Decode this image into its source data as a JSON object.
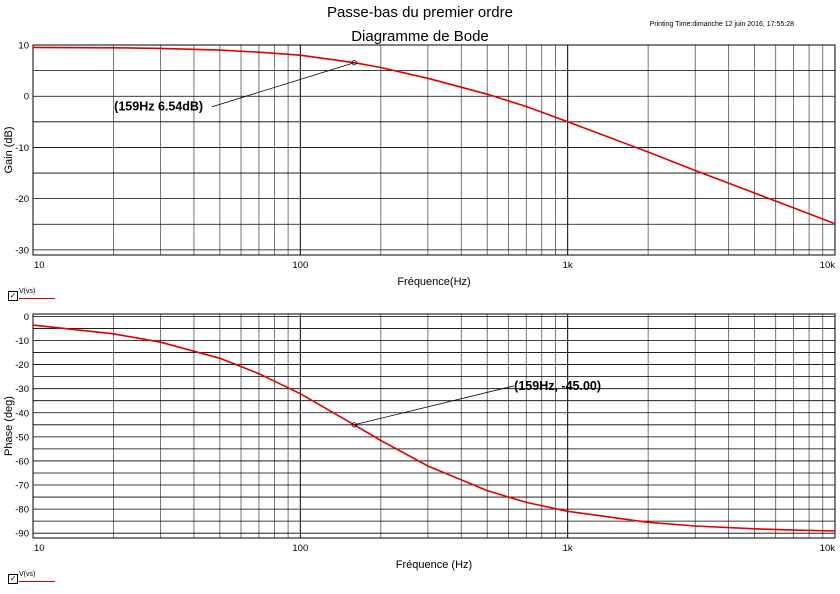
{
  "header": {
    "title": "Passe-bas du premier ordre",
    "subtitle": "Diagramme de Bode",
    "printing_time": "Printing Time:dimanche 12 juin 2016, 17:55:28"
  },
  "colors": {
    "trace": "#e00000",
    "grid": "#000000"
  },
  "legend": {
    "checkbox_mark": "✓",
    "series_label": "V(vs)"
  },
  "chart_data": [
    {
      "type": "line",
      "xscale": "log",
      "xlim": [
        10,
        10000
      ],
      "ylim": [
        -31,
        10
      ],
      "xlabel": "Fréquence(Hz)",
      "ylabel": "Gain (dB)",
      "xticks": [
        "10",
        "100",
        "1k",
        "10k"
      ],
      "yticks": [
        "10",
        "0",
        "-10",
        "-20",
        "-30"
      ],
      "grid": true,
      "series": [
        {
          "name": "V(vs)",
          "x": [
            10,
            20,
            30,
            50,
            70,
            100,
            159,
            200,
            300,
            500,
            700,
            1000,
            2000,
            3000,
            5000,
            7000,
            10000
          ],
          "y": [
            9.53,
            9.45,
            9.34,
            9.0,
            8.6,
            8.0,
            6.54,
            5.6,
            3.5,
            0.4,
            -2.0,
            -5.0,
            -10.9,
            -14.5,
            -18.9,
            -21.8,
            -24.9
          ]
        }
      ],
      "annotation": {
        "label": "(159Hz 6.54dB)",
        "x": 159,
        "y": 6.54
      }
    },
    {
      "type": "line",
      "xscale": "log",
      "xlim": [
        10,
        10000
      ],
      "ylim": [
        -92,
        1
      ],
      "xlabel": "Fréquence (Hz)",
      "ylabel": "Phase (deg)",
      "xticks": [
        "10",
        "100",
        "1k",
        "10k"
      ],
      "yticks": [
        "0",
        "-10",
        "-20",
        "-30",
        "-40",
        "-50",
        "-60",
        "-70",
        "-80",
        "-90"
      ],
      "grid": true,
      "series": [
        {
          "name": "V(vs)",
          "x": [
            10,
            20,
            30,
            50,
            70,
            100,
            159,
            200,
            300,
            500,
            700,
            1000,
            2000,
            3000,
            5000,
            7000,
            10000
          ],
          "y": [
            -3.6,
            -7.2,
            -10.7,
            -17.4,
            -23.8,
            -32.1,
            -45.0,
            -51.5,
            -62.1,
            -72.3,
            -77.2,
            -80.9,
            -85.5,
            -87.0,
            -88.2,
            -88.7,
            -89.1
          ]
        }
      ],
      "annotation": {
        "label": "(159Hz, -45.00)",
        "x": 159,
        "y": -45.0
      }
    }
  ]
}
